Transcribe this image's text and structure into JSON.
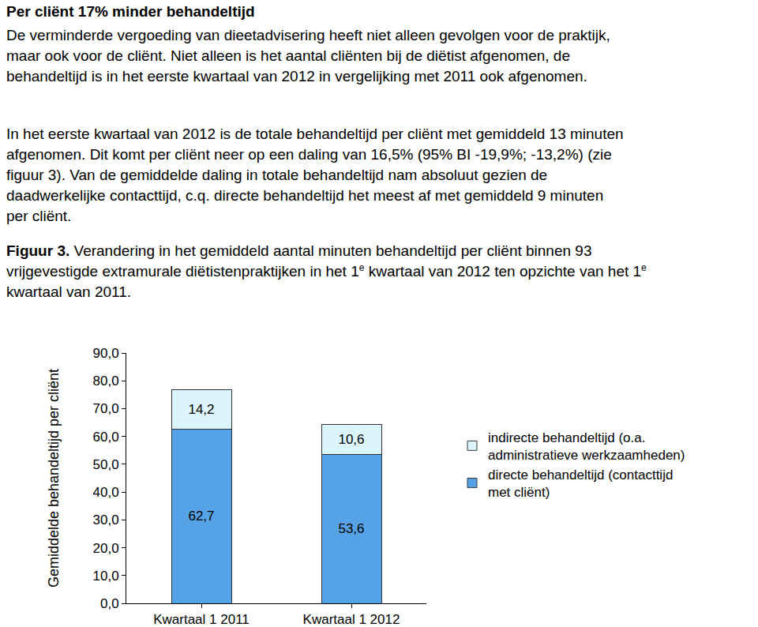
{
  "document": {
    "heading": "Per cliënt 17% minder behandeltijd",
    "paragraphs": [
      [
        "De verminderde vergoeding van dieetadvisering heeft niet alleen gevolgen voor de praktijk,",
        "maar ook voor de cliënt. Niet alleen is het aantal cliënten bij de diëtist afgenomen, de",
        "behandeltijd is in het eerste kwartaal van 2012 in vergelijking met 2011 ook afgenomen."
      ],
      [
        "In het eerste kwartaal van 2012 is de totale behandeltijd per cliënt met gemiddeld 13 minuten",
        "afgenomen. Dit komt per cliënt neer op een daling van 16,5% (95% BI -19,9%; -13,2%) (zie",
        "figuur 3). Van de gemiddelde daling in totale behandeltijd nam absoluut gezien de",
        "daadwerkelijke contacttijd, c.q. directe behandeltijd het meest af met gemiddeld 9 minuten",
        "per cliënt."
      ]
    ],
    "figure_caption": [
      [
        {
          "text": "Figuur 3.",
          "bold": true
        },
        {
          "text": " Verandering in het gemiddeld aantal minuten behandeltijd per cliënt binnen 93"
        }
      ],
      [
        {
          "text": "vrijgevestigde extramurale diëtistenpraktijken in het 1"
        },
        {
          "text": "e",
          "sup": true
        },
        {
          "text": " kwartaal van 2012 ten opzichte van het 1"
        },
        {
          "text": "e",
          "sup": true
        }
      ],
      [
        {
          "text": "kwartaal van 2011."
        }
      ]
    ]
  },
  "chart_data": {
    "type": "bar",
    "stacked": true,
    "y_label": "Gemiddelde behandeltijd per cliënt",
    "categories": [
      "Kwartaal 1 2011",
      "Kwartaal 1 2012"
    ],
    "series": [
      {
        "name": "directe behandeltijd (contacttijd\nmet cliënt)",
        "color": "#55a3e6",
        "values": [
          62.7,
          53.6
        ],
        "value_labels": [
          "62,7",
          "53,6"
        ]
      },
      {
        "name": "indirecte behandeltijd (o.a.\nadministratieve werkzaamheden)",
        "color": "#dcf4fb",
        "values": [
          14.2,
          10.6
        ],
        "value_labels": [
          "14,2",
          "10,6"
        ]
      }
    ],
    "ylim": [
      0,
      90
    ],
    "yticks": [
      {
        "value": 0,
        "label": "0,0"
      },
      {
        "value": 10,
        "label": "10,0"
      },
      {
        "value": 20,
        "label": "20,0"
      },
      {
        "value": 30,
        "label": "30,0"
      },
      {
        "value": 40,
        "label": "40,0"
      },
      {
        "value": 50,
        "label": "50,0"
      },
      {
        "value": 60,
        "label": "60,0"
      },
      {
        "value": 70,
        "label": "70,0"
      },
      {
        "value": 80,
        "label": "80,0"
      },
      {
        "value": 90,
        "label": "90,0"
      }
    ],
    "grid": false,
    "data_labels": true,
    "legend": "right"
  }
}
